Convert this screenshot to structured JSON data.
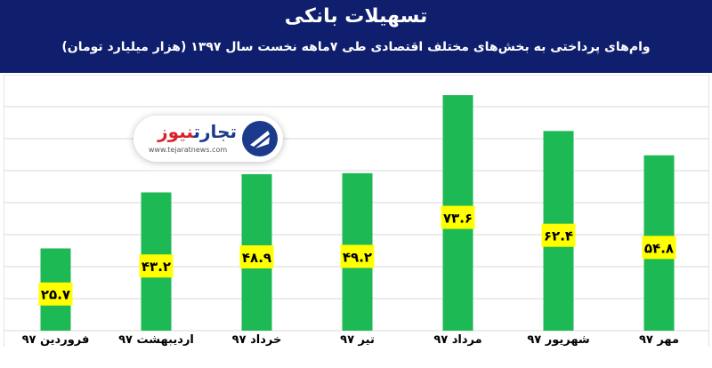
{
  "header": {
    "title": "تسهیلات بانکی",
    "subtitle": "وام‌های پرداختی به بخش‌های مختلف اقتصادی طی ۷ماهه نخست سال ۱۳۹۷ (هزار میلیارد تومان)"
  },
  "logo": {
    "name_part1": "تجارت",
    "name_part2": "نیوز",
    "url": "www.tejaratnews.com"
  },
  "colors": {
    "header_bg": "#0f1f6e",
    "bar": "#1db954",
    "label_bg": "#ffff00",
    "grid": "#d9d9d9"
  },
  "chart_data": {
    "type": "bar",
    "title": "تسهیلات بانکی",
    "categories": [
      "فروردین ۹۷",
      "اردیبهشت ۹۷",
      "خرداد ۹۷",
      "تیر ۹۷",
      "مرداد ۹۷",
      "شهریور ۹۷",
      "مهر ۹۷"
    ],
    "values": [
      25.7,
      43.2,
      48.9,
      49.2,
      73.6,
      62.4,
      54.8
    ],
    "value_labels": [
      "۲۵.۷",
      "۴۳.۲",
      "۴۸.۹",
      "۴۹.۲",
      "۷۳.۶",
      "۶۲.۴",
      "۵۴.۸"
    ],
    "category_order": "left-to-right",
    "ylim": [
      0,
      80
    ],
    "grid": true,
    "xlabel": "",
    "ylabel": ""
  }
}
